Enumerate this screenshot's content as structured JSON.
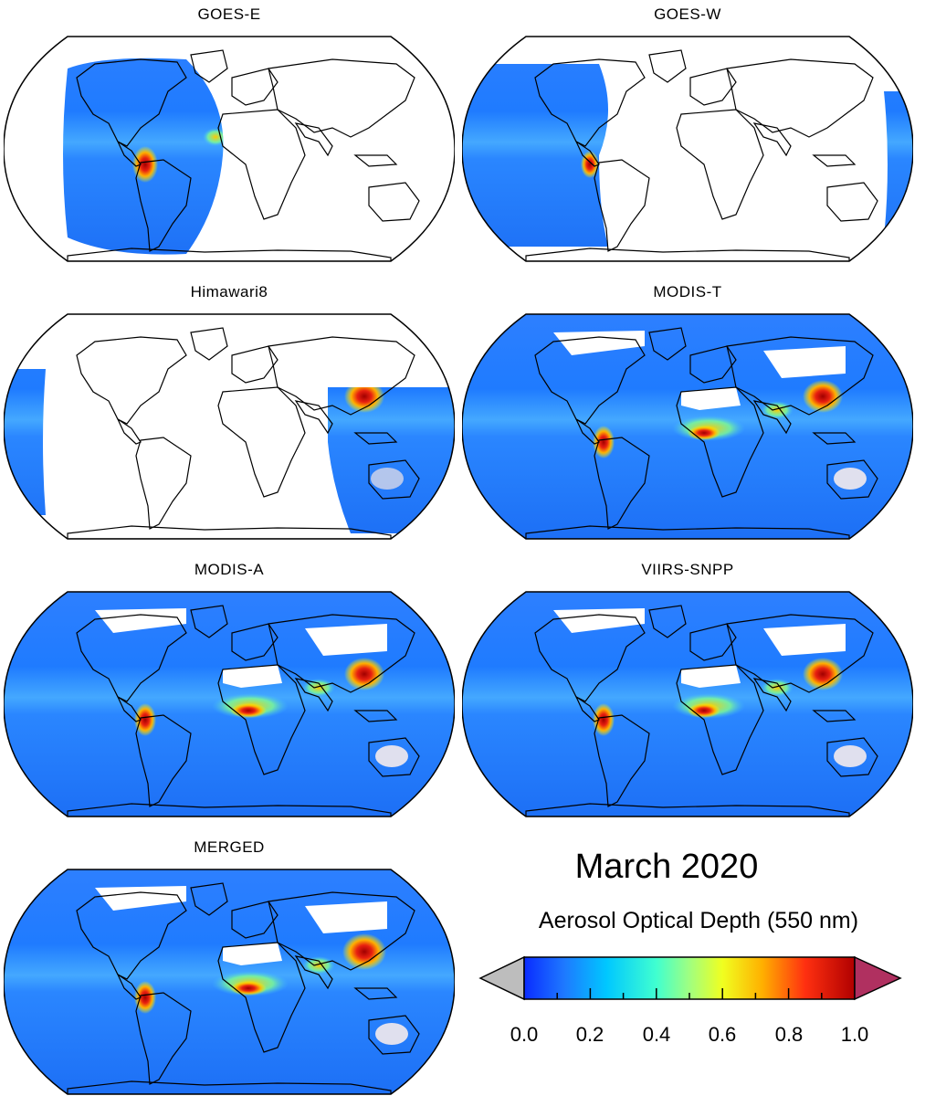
{
  "period_title": "March 2020",
  "colorbar": {
    "label": "Aerosol Optical Depth (550 nm)",
    "ticks": [
      "0.0",
      "0.2",
      "0.4",
      "0.6",
      "0.8",
      "1.0"
    ],
    "min": 0.0,
    "max": 1.0,
    "extend": "both",
    "under_color": "#bdbdbd",
    "over_color": "#b03060",
    "colormap": [
      "#0a2cff",
      "#1e90ff",
      "#00e5ff",
      "#7fffb0",
      "#ffff00",
      "#ff8c00",
      "#e01010",
      "#a00000"
    ]
  },
  "panels": [
    {
      "name": "GOES-E",
      "coverage": "goes-east"
    },
    {
      "name": "GOES-W",
      "coverage": "goes-west"
    },
    {
      "name": "Himawari8",
      "coverage": "himawari"
    },
    {
      "name": "MODIS-T",
      "coverage": "global"
    },
    {
      "name": "MODIS-A",
      "coverage": "global"
    },
    {
      "name": "VIIRS-SNPP",
      "coverage": "global"
    },
    {
      "name": "MERGED",
      "coverage": "global"
    }
  ]
}
